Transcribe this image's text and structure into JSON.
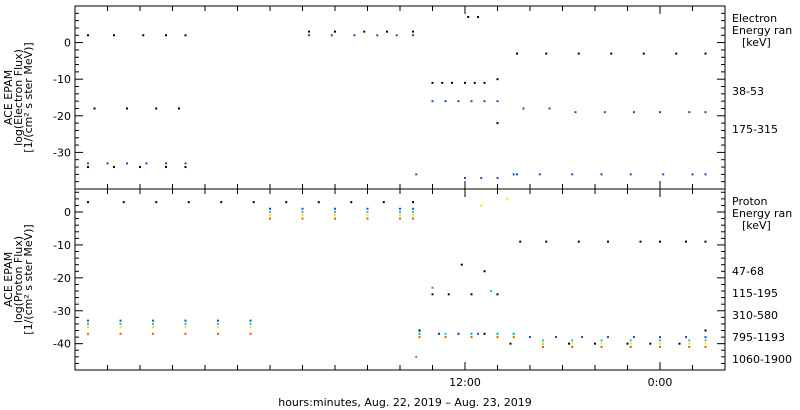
{
  "x_axis": {
    "title": "hours:minutes, Aug. 22, 2019 – Aug. 23, 2019",
    "range": [
      -7,
      13
    ],
    "ticks": [
      {
        "value": 5,
        "label": "12:00"
      },
      {
        "value": 11,
        "label": "0:00"
      }
    ]
  },
  "chart_data": [
    {
      "type": "scatter",
      "ylabel_lines": [
        "ACE EPAM",
        "log(Electron Flux)",
        "[1/(cm² s ster MeV)]"
      ],
      "ylim": [
        -40,
        10
      ],
      "yticks": [
        -30,
        -20,
        -10,
        0
      ],
      "legend_title_lines": [
        "Electron",
        "Energy ran",
        "[keV]"
      ],
      "series": [
        {
          "name": "38-53",
          "color": "#000000",
          "x": [
            -6.6,
            -5.8,
            -4.9,
            -4.2,
            -3.6,
            0.2,
            1.0,
            1.9,
            2.6,
            3.4,
            -6.4,
            -5.4,
            -4.5,
            -3.8,
            -6.6,
            -5.8,
            -5.0,
            -4.2,
            -3.6,
            4.0,
            4.3,
            4.6,
            5.0,
            5.3,
            5.6,
            6.0,
            6.6,
            7.5,
            8.5,
            9.5,
            10.5,
            11.5,
            12.4,
            5.1,
            5.4,
            6.0
          ],
          "y": [
            2,
            2,
            2,
            2,
            2,
            3,
            3,
            3,
            3,
            3,
            -18,
            -18,
            -18,
            -18,
            -34,
            -34,
            -34,
            -34,
            -34,
            -11,
            -11,
            -11,
            -11,
            -11,
            -11,
            -10,
            -3,
            -3,
            -3,
            -3,
            -3,
            -3,
            -3,
            7,
            7,
            -22
          ]
        },
        {
          "name": "175-315",
          "color": "#1250c8",
          "x": [
            -6.6,
            -6.0,
            -5.4,
            -4.8,
            -4.2,
            -3.6,
            0.2,
            0.9,
            1.6,
            2.3,
            2.9,
            3.4,
            3.5,
            4.0,
            4.4,
            4.8,
            5.2,
            5.6,
            6.0,
            6.5,
            6.8,
            7.6,
            8.4,
            9.3,
            10.2,
            11.0,
            11.9,
            12.4,
            5.0,
            5.5,
            6.0,
            6.6,
            7.3,
            8.3,
            9.2,
            10.1,
            11.1,
            12.0,
            12.4
          ],
          "y": [
            -33,
            -33,
            -33,
            -33,
            -33,
            -33,
            2,
            2,
            2,
            2,
            2,
            2,
            -36,
            -16,
            -16,
            -16,
            -16,
            -16,
            -16,
            -36,
            -18,
            -18,
            -19,
            -19,
            -19,
            -19,
            -19,
            -19,
            -37,
            -37,
            -37,
            -36,
            -36,
            -36,
            -36,
            -36,
            -36,
            -36,
            -36
          ]
        }
      ]
    },
    {
      "type": "scatter",
      "ylabel_lines": [
        "ACE EPAM",
        "log(Proton Flux)",
        "[1/(cm² s ster MeV)]"
      ],
      "ylim": [
        -48,
        7
      ],
      "yticks": [
        -40,
        -30,
        -20,
        -10,
        0
      ],
      "legend_title_lines": [
        "Proton",
        "Energy ran",
        "[keV]"
      ],
      "series": [
        {
          "name": "47-68",
          "color": "#000000",
          "x": [
            -6.6,
            -5.5,
            -4.5,
            -3.5,
            -2.5,
            -1.5,
            -0.5,
            0.5,
            1.5,
            2.5,
            3.4,
            3.6,
            4.2,
            4.8,
            5.2,
            5.6,
            6.0,
            6.7,
            7.5,
            8.5,
            9.4,
            10.4,
            11.0,
            11.8,
            12.4,
            4.9,
            5.6,
            4.0,
            4.5,
            5.2,
            6.0,
            6.4,
            7.4,
            8.2,
            9.0,
            10.0,
            10.7,
            11.6,
            12.4
          ],
          "y": [
            3,
            3,
            3,
            3,
            3,
            3,
            3,
            3,
            3,
            3,
            3,
            -36,
            -37,
            -37,
            -37,
            -37,
            -37,
            -9,
            -9,
            -9,
            -9,
            -9,
            -9,
            -9,
            -9,
            -16,
            -18,
            -25,
            -25,
            -25,
            -25,
            -40,
            -40,
            -40,
            -40,
            -40,
            -40,
            -40,
            -36
          ]
        },
        {
          "name": "115-195",
          "color": "#1250c8",
          "x": [
            -6.6,
            -5.6,
            -4.6,
            -3.6,
            -2.6,
            -1.6,
            -1.0,
            0.0,
            1.0,
            2.0,
            3.0,
            3.4,
            3.6,
            4.2,
            4.8,
            5.4,
            6.0,
            6.5,
            7.0,
            7.8,
            8.6,
            9.4,
            10.2,
            11.0,
            11.8,
            12.4
          ],
          "y": [
            -33,
            -33,
            -33,
            -33,
            -33,
            -33,
            1,
            1,
            1,
            1,
            1,
            1,
            -37,
            -37,
            -37,
            -37,
            -37,
            -37,
            -38,
            -38,
            -38,
            -38,
            -38,
            -38,
            -38,
            -38
          ]
        },
        {
          "name": "310-580",
          "color": "#00d0e0",
          "x": [
            -6.6,
            -5.6,
            -4.6,
            -3.6,
            -2.6,
            -1.6,
            -1.0,
            0.0,
            1.0,
            2.0,
            3.0,
            3.4,
            3.6,
            4.4,
            5.2,
            6.0,
            6.5,
            7.4,
            8.3,
            9.2,
            10.1,
            11.0,
            11.9,
            12.4,
            5.8
          ],
          "y": [
            -34,
            -34,
            -34,
            -34,
            -34,
            -34,
            0,
            0,
            0,
            0,
            0,
            0,
            -37,
            -37,
            -37,
            -37,
            -37,
            -39,
            -39,
            -39,
            -39,
            -39,
            -39,
            -39,
            -24
          ]
        },
        {
          "name": "795-1193",
          "color": "#e8e800",
          "x": [
            -6.6,
            -5.6,
            -4.6,
            -3.6,
            -2.6,
            -1.6,
            -1.0,
            0.0,
            1.0,
            2.0,
            3.0,
            3.4,
            3.6,
            4.4,
            5.2,
            6.0,
            6.5,
            7.4,
            8.3,
            9.2,
            10.1,
            11.0,
            11.9,
            12.4,
            5.5,
            6.3
          ],
          "y": [
            -35,
            -35,
            -35,
            -35,
            -35,
            -35,
            -1,
            -1,
            -1,
            -1,
            -1,
            -1,
            -38,
            -38,
            -38,
            -38,
            -38,
            -40,
            -40,
            -40,
            -40,
            -40,
            -40,
            -40,
            2,
            4
          ]
        },
        {
          "name": "1060-1900",
          "color": "#e06000",
          "x": [
            -6.6,
            -5.6,
            -4.6,
            -3.6,
            -2.6,
            -1.6,
            -1.0,
            0.0,
            1.0,
            2.0,
            3.0,
            3.4,
            3.6,
            4.4,
            5.2,
            6.0,
            6.5,
            7.4,
            8.3,
            9.2,
            10.1,
            11.0,
            11.9,
            12.4,
            3.5,
            4.0
          ],
          "y": [
            -37,
            -37,
            -37,
            -37,
            -37,
            -37,
            -2,
            -2,
            -2,
            -2,
            -2,
            -2,
            -38,
            -38,
            -38,
            -38,
            -38,
            -41,
            -41,
            -41,
            -41,
            -41,
            -41,
            -41,
            -44,
            -23
          ]
        }
      ]
    }
  ]
}
